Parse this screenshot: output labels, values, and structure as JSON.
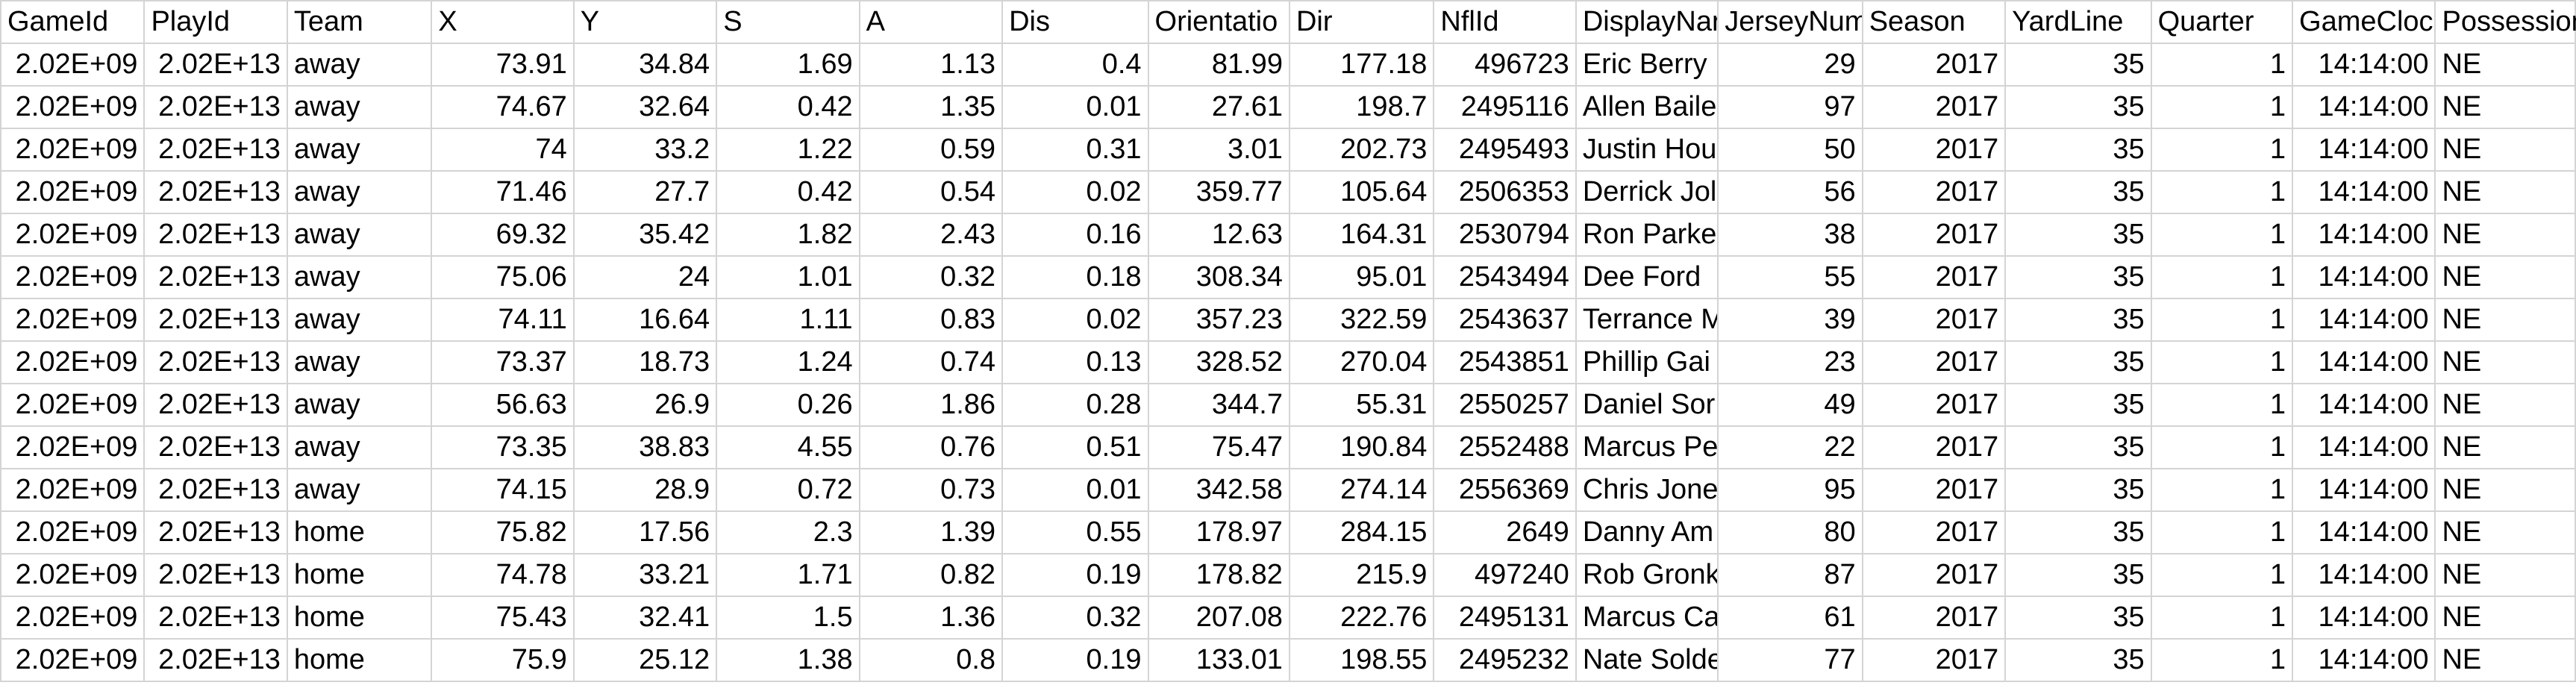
{
  "sheet": {
    "headers": [
      "GameId",
      "PlayId",
      "Team",
      "X",
      "Y",
      "S",
      "A",
      "Dis",
      "Orientatio",
      "Dir",
      "NflId",
      "DisplayNar",
      "JerseyNum",
      "Season",
      "YardLine",
      "Quarter",
      "GameCloc",
      "Possession"
    ],
    "rows": [
      [
        "2.02E+09",
        "2.02E+13",
        "away",
        "73.91",
        "34.84",
        "1.69",
        "1.13",
        "0.4",
        "81.99",
        "177.18",
        "496723",
        "Eric Berry",
        "29",
        "2017",
        "35",
        "1",
        "14:14:00",
        "NE"
      ],
      [
        "2.02E+09",
        "2.02E+13",
        "away",
        "74.67",
        "32.64",
        "0.42",
        "1.35",
        "0.01",
        "27.61",
        "198.7",
        "2495116",
        "Allen Baile",
        "97",
        "2017",
        "35",
        "1",
        "14:14:00",
        "NE"
      ],
      [
        "2.02E+09",
        "2.02E+13",
        "away",
        "74",
        "33.2",
        "1.22",
        "0.59",
        "0.31",
        "3.01",
        "202.73",
        "2495493",
        "Justin Hou",
        "50",
        "2017",
        "35",
        "1",
        "14:14:00",
        "NE"
      ],
      [
        "2.02E+09",
        "2.02E+13",
        "away",
        "71.46",
        "27.7",
        "0.42",
        "0.54",
        "0.02",
        "359.77",
        "105.64",
        "2506353",
        "Derrick Jol",
        "56",
        "2017",
        "35",
        "1",
        "14:14:00",
        "NE"
      ],
      [
        "2.02E+09",
        "2.02E+13",
        "away",
        "69.32",
        "35.42",
        "1.82",
        "2.43",
        "0.16",
        "12.63",
        "164.31",
        "2530794",
        "Ron Parke",
        "38",
        "2017",
        "35",
        "1",
        "14:14:00",
        "NE"
      ],
      [
        "2.02E+09",
        "2.02E+13",
        "away",
        "75.06",
        "24",
        "1.01",
        "0.32",
        "0.18",
        "308.34",
        "95.01",
        "2543494",
        "Dee Ford",
        "55",
        "2017",
        "35",
        "1",
        "14:14:00",
        "NE"
      ],
      [
        "2.02E+09",
        "2.02E+13",
        "away",
        "74.11",
        "16.64",
        "1.11",
        "0.83",
        "0.02",
        "357.23",
        "322.59",
        "2543637",
        "Terrance M",
        "39",
        "2017",
        "35",
        "1",
        "14:14:00",
        "NE"
      ],
      [
        "2.02E+09",
        "2.02E+13",
        "away",
        "73.37",
        "18.73",
        "1.24",
        "0.74",
        "0.13",
        "328.52",
        "270.04",
        "2543851",
        "Phillip Gai",
        "23",
        "2017",
        "35",
        "1",
        "14:14:00",
        "NE"
      ],
      [
        "2.02E+09",
        "2.02E+13",
        "away",
        "56.63",
        "26.9",
        "0.26",
        "1.86",
        "0.28",
        "344.7",
        "55.31",
        "2550257",
        "Daniel Sor",
        "49",
        "2017",
        "35",
        "1",
        "14:14:00",
        "NE"
      ],
      [
        "2.02E+09",
        "2.02E+13",
        "away",
        "73.35",
        "38.83",
        "4.55",
        "0.76",
        "0.51",
        "75.47",
        "190.84",
        "2552488",
        "Marcus Pe",
        "22",
        "2017",
        "35",
        "1",
        "14:14:00",
        "NE"
      ],
      [
        "2.02E+09",
        "2.02E+13",
        "away",
        "74.15",
        "28.9",
        "0.72",
        "0.73",
        "0.01",
        "342.58",
        "274.14",
        "2556369",
        "Chris Jones",
        "95",
        "2017",
        "35",
        "1",
        "14:14:00",
        "NE"
      ],
      [
        "2.02E+09",
        "2.02E+13",
        "home",
        "75.82",
        "17.56",
        "2.3",
        "1.39",
        "0.55",
        "178.97",
        "284.15",
        "2649",
        "Danny Am",
        "80",
        "2017",
        "35",
        "1",
        "14:14:00",
        "NE"
      ],
      [
        "2.02E+09",
        "2.02E+13",
        "home",
        "74.78",
        "33.21",
        "1.71",
        "0.82",
        "0.19",
        "178.82",
        "215.9",
        "497240",
        "Rob Gronk",
        "87",
        "2017",
        "35",
        "1",
        "14:14:00",
        "NE"
      ],
      [
        "2.02E+09",
        "2.02E+13",
        "home",
        "75.43",
        "32.41",
        "1.5",
        "1.36",
        "0.32",
        "207.08",
        "222.76",
        "2495131",
        "Marcus Ca",
        "61",
        "2017",
        "35",
        "1",
        "14:14:00",
        "NE"
      ],
      [
        "2.02E+09",
        "2.02E+13",
        "home",
        "75.9",
        "25.12",
        "1.38",
        "0.8",
        "0.19",
        "133.01",
        "198.55",
        "2495232",
        "Nate Solde",
        "77",
        "2017",
        "35",
        "1",
        "14:14:00",
        "NE"
      ]
    ]
  }
}
